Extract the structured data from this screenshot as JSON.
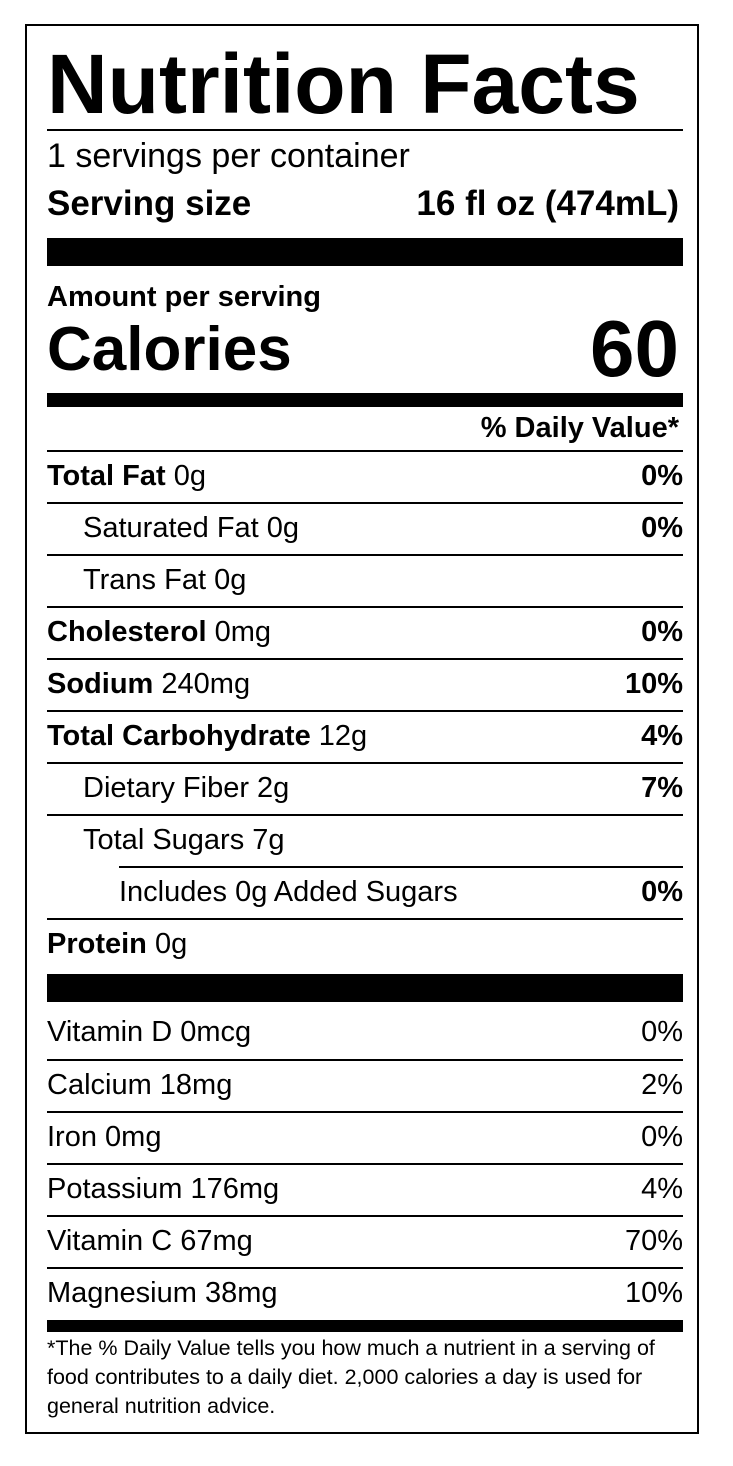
{
  "header": {
    "title": "Nutrition Facts",
    "servings": "1 servings per container",
    "serving_size_label": "Serving size",
    "serving_size_value": "16 fl oz (474mL)"
  },
  "calories": {
    "amount_label": "Amount per serving",
    "label": "Calories",
    "value": "60"
  },
  "daily_value_header": "% Daily Value*",
  "nutrients": [
    {
      "name": "Total Fat",
      "amount": " 0g",
      "dv": "0%"
    },
    {
      "name": "Saturated Fat 0g",
      "amount": "",
      "dv": "0%"
    },
    {
      "name": "Trans Fat 0g",
      "amount": "",
      "dv": ""
    },
    {
      "name": "Cholesterol",
      "amount": " 0mg",
      "dv": "0%"
    },
    {
      "name": "Sodium",
      "amount": " 240mg",
      "dv": "10%"
    },
    {
      "name": "Total Carbohydrate",
      "amount": " 12g",
      "dv": "4%"
    },
    {
      "name": "Dietary Fiber 2g",
      "amount": "",
      "dv": "7%"
    },
    {
      "name": "Total Sugars 7g",
      "amount": "",
      "dv": ""
    },
    {
      "name": "Includes 0g Added Sugars",
      "amount": "",
      "dv": "0%"
    },
    {
      "name": "Protein",
      "amount": " 0g",
      "dv": ""
    }
  ],
  "vitamins": [
    {
      "name": "Vitamin D 0mcg",
      "dv": "0%"
    },
    {
      "name": "Calcium 18mg",
      "dv": "2%"
    },
    {
      "name": "Iron 0mg",
      "dv": "0%"
    },
    {
      "name": "Potassium 176mg",
      "dv": "4%"
    },
    {
      "name": "Vitamin C 67mg",
      "dv": "70%"
    },
    {
      "name": "Magnesium 38mg",
      "dv": "10%"
    }
  ],
  "footnote": "*The % Daily Value tells you how much a nutrient in a serving of food contributes to a daily diet. 2,000 calories a day is used for general nutrition advice."
}
